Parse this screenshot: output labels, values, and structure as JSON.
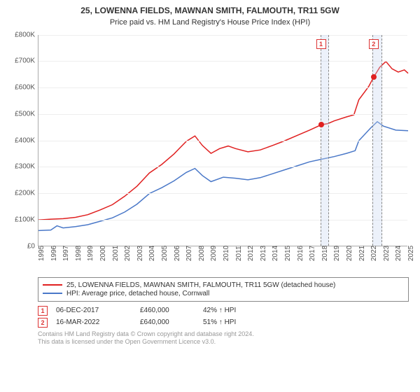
{
  "title": "25, LOWENNA FIELDS, MAWNAN SMITH, FALMOUTH, TR11 5GW",
  "subtitle": "Price paid vs. HM Land Registry's House Price Index (HPI)",
  "chart": {
    "type": "line",
    "xlim": [
      1995,
      2025
    ],
    "ylim": [
      0,
      800000
    ],
    "ytick_step": 100000,
    "x_ticks": [
      1995,
      1996,
      1997,
      1998,
      1999,
      2000,
      2001,
      2002,
      2003,
      2004,
      2005,
      2006,
      2007,
      2008,
      2009,
      2010,
      2011,
      2012,
      2013,
      2014,
      2015,
      2016,
      2017,
      2018,
      2019,
      2020,
      2021,
      2022,
      2023,
      2024,
      2025
    ],
    "y_tick_labels": [
      "£0",
      "£100K",
      "£200K",
      "£300K",
      "£400K",
      "£500K",
      "£600K",
      "£700K",
      "£800K"
    ],
    "background_color": "#ffffff",
    "grid_color": "#eeeeee",
    "axis_color": "#aaaaaa",
    "label_fontsize": 10,
    "title_fontsize": 12,
    "line_width": 1.5,
    "shaded_bands": [
      {
        "from": 2017.9,
        "to": 2018.6
      },
      {
        "from": 2022.1,
        "to": 2022.9
      }
    ],
    "series": [
      {
        "name": "price_paid",
        "label": "25, LOWENNA FIELDS, MAWNAN SMITH, FALMOUTH, TR11 5GW (detached house)",
        "color": "#e02020",
        "data": [
          [
            1995,
            100000
          ],
          [
            1996,
            103000
          ],
          [
            1997,
            105000
          ],
          [
            1998,
            110000
          ],
          [
            1999,
            120000
          ],
          [
            2000,
            138000
          ],
          [
            2001,
            158000
          ],
          [
            2002,
            190000
          ],
          [
            2003,
            228000
          ],
          [
            2004,
            278000
          ],
          [
            2005,
            310000
          ],
          [
            2006,
            350000
          ],
          [
            2007,
            398000
          ],
          [
            2007.7,
            418000
          ],
          [
            2008.3,
            382000
          ],
          [
            2009,
            352000
          ],
          [
            2009.7,
            370000
          ],
          [
            2010.4,
            380000
          ],
          [
            2011,
            370000
          ],
          [
            2012,
            358000
          ],
          [
            2013,
            365000
          ],
          [
            2014,
            382000
          ],
          [
            2015,
            400000
          ],
          [
            2016,
            420000
          ],
          [
            2017,
            440000
          ],
          [
            2017.93,
            460000
          ],
          [
            2018.5,
            465000
          ],
          [
            2019,
            475000
          ],
          [
            2020,
            490000
          ],
          [
            2020.6,
            498000
          ],
          [
            2021,
            555000
          ],
          [
            2021.8,
            605000
          ],
          [
            2022.2,
            640000
          ],
          [
            2022.7,
            678000
          ],
          [
            2023.2,
            700000
          ],
          [
            2023.7,
            672000
          ],
          [
            2024.2,
            660000
          ],
          [
            2024.7,
            668000
          ],
          [
            2025,
            655000
          ]
        ]
      },
      {
        "name": "hpi",
        "label": "HPI: Average price, detached house, Cornwall",
        "color": "#4a78c8",
        "data": [
          [
            1995,
            60000
          ],
          [
            1996,
            62000
          ],
          [
            1996.5,
            78000
          ],
          [
            1997,
            70000
          ],
          [
            1998,
            75000
          ],
          [
            1999,
            82000
          ],
          [
            2000,
            95000
          ],
          [
            2001,
            108000
          ],
          [
            2002,
            130000
          ],
          [
            2003,
            160000
          ],
          [
            2004,
            200000
          ],
          [
            2005,
            222000
          ],
          [
            2006,
            248000
          ],
          [
            2007,
            280000
          ],
          [
            2007.7,
            295000
          ],
          [
            2008.3,
            268000
          ],
          [
            2009,
            245000
          ],
          [
            2010,
            262000
          ],
          [
            2011,
            258000
          ],
          [
            2012,
            252000
          ],
          [
            2013,
            260000
          ],
          [
            2014,
            275000
          ],
          [
            2015,
            290000
          ],
          [
            2016,
            305000
          ],
          [
            2017,
            320000
          ],
          [
            2018,
            330000
          ],
          [
            2019,
            340000
          ],
          [
            2020,
            352000
          ],
          [
            2020.7,
            362000
          ],
          [
            2021,
            400000
          ],
          [
            2022,
            450000
          ],
          [
            2022.5,
            472000
          ],
          [
            2023,
            455000
          ],
          [
            2024,
            440000
          ],
          [
            2025,
            438000
          ]
        ]
      }
    ],
    "markers": [
      {
        "id": "1",
        "x": 2017.93,
        "y": 460000,
        "color": "#e02020",
        "box_top": 6
      },
      {
        "id": "2",
        "x": 2022.2,
        "y": 640000,
        "color": "#e02020",
        "box_top": 6
      }
    ]
  },
  "legend": {
    "items": [
      {
        "color": "#e02020",
        "label": "25, LOWENNA FIELDS, MAWNAN SMITH, FALMOUTH, TR11 5GW (detached house)"
      },
      {
        "color": "#4a78c8",
        "label": "HPI: Average price, detached house, Cornwall"
      }
    ]
  },
  "events": [
    {
      "id": "1",
      "date": "06-DEC-2017",
      "price": "£460,000",
      "diff": "42% ↑ HPI"
    },
    {
      "id": "2",
      "date": "16-MAR-2022",
      "price": "£640,000",
      "diff": "51% ↑ HPI"
    }
  ],
  "footer_line1": "Contains HM Land Registry data © Crown copyright and database right 2024.",
  "footer_line2": "This data is licensed under the Open Government Licence v3.0."
}
